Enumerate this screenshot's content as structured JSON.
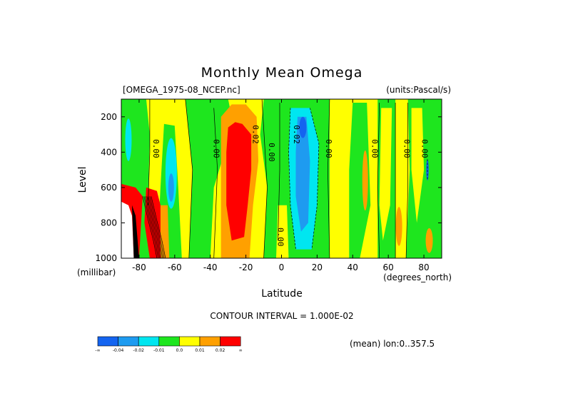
{
  "chart_data": {
    "type": "heatmap",
    "title": "Monthly Mean Omega",
    "dataset_label": "[OMEGA_1975-08_NCEP.nc]",
    "units_label": "(units:Pascal/s)",
    "xlabel": "Latitude",
    "xunits": "(degrees_north)",
    "ylabel": "Level",
    "yunits": "(millibar)",
    "xlim": [
      -90,
      90
    ],
    "ylim": [
      1000,
      100
    ],
    "x_ticks": [
      -80,
      -60,
      -40,
      -20,
      0,
      20,
      40,
      60,
      80
    ],
    "x_tick_labels": [
      "-80",
      "-60",
      "-40",
      "-20",
      "0",
      "20",
      "40",
      "60",
      "80"
    ],
    "y_ticks": [
      200,
      400,
      600,
      800,
      1000
    ],
    "y_tick_labels": [
      "200",
      "400",
      "600",
      "800",
      "1000"
    ],
    "contour_interval_text": "CONTOUR INTERVAL = 1.000E-02",
    "mean_text": "(mean) lon:0..357.5",
    "contour_labels": [
      {
        "text": "0.00",
        "lat": -72,
        "level": 380
      },
      {
        "text": "0.00",
        "lat": -38,
        "level": 380
      },
      {
        "text": "0.02",
        "lat": -16,
        "level": 300
      },
      {
        "text": "0.00",
        "lat": -7,
        "level": 400
      },
      {
        "text": "0.02",
        "lat": 7,
        "level": 300
      },
      {
        "text": "0.00",
        "lat": 25,
        "level": 380
      },
      {
        "text": "0.00",
        "lat": -2,
        "level": 880
      },
      {
        "text": "0.00",
        "lat": 51,
        "level": 380
      },
      {
        "text": "0.00",
        "lat": 69,
        "level": 380
      },
      {
        "text": "0.00",
        "lat": 79,
        "level": 380
      }
    ],
    "colorbar": {
      "colors": [
        "#1464f0",
        "#1e9bf0",
        "#00e6f0",
        "#1ee61e",
        "#ffff00",
        "#ffa000",
        "#ff0000"
      ],
      "labels": [
        "-∞",
        "-0.04",
        "-0.02",
        "-0.01",
        "0.0",
        "0.01",
        "0.02",
        "∞"
      ]
    }
  }
}
